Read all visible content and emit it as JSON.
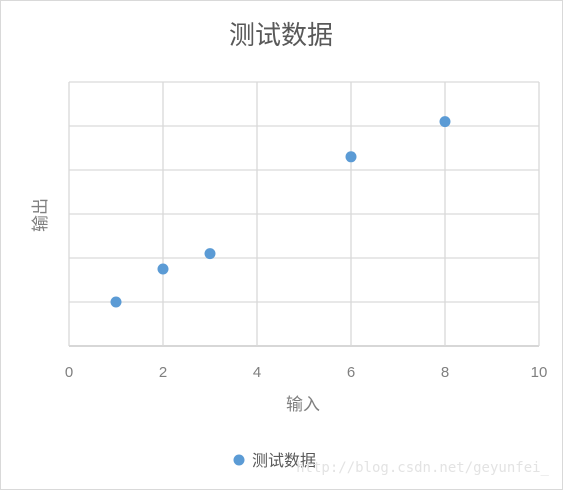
{
  "chart_data": {
    "type": "scatter",
    "title": "测试数据",
    "xlabel": "输入",
    "ylabel": "输出",
    "xlim": [
      0,
      10
    ],
    "x_ticks": [
      0,
      2,
      4,
      6,
      8,
      10
    ],
    "y_gridlines": 6,
    "grid": true,
    "legend_position": "bottom",
    "series": [
      {
        "name": "测试数据",
        "color": "#5b9bd5",
        "points": [
          {
            "x": 1,
            "y": 1
          },
          {
            "x": 2,
            "y": 1.75
          },
          {
            "x": 3,
            "y": 2.1
          },
          {
            "x": 6,
            "y": 4.3
          },
          {
            "x": 8,
            "y": 5.1
          }
        ]
      }
    ],
    "ylim": [
      0,
      6
    ]
  },
  "watermark": "http://blog.csdn.net/geyunfei_"
}
